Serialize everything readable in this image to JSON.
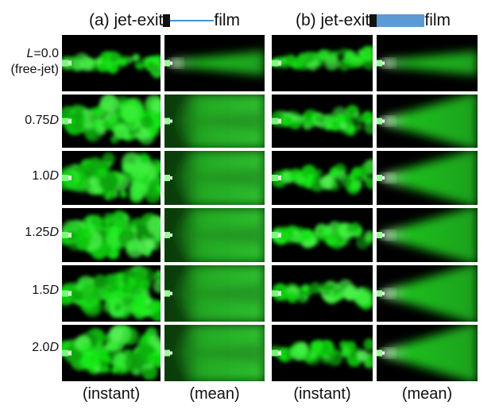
{
  "headers": {
    "a": {
      "prefix": "(a) jet-exit",
      "suffix": "film"
    },
    "b": {
      "prefix": "(b) jet-exit",
      "suffix": "film"
    }
  },
  "rows": [
    {
      "label_html": "<i>L</i>=0.0<br>(free-jet)",
      "text": "L=0.0 (free-jet)"
    },
    {
      "label_html": "0.75<i>D</i>",
      "text": "0.75D"
    },
    {
      "label_html": "1.0<i>D</i>",
      "text": "1.0D"
    },
    {
      "label_html": "1.25<i>D</i>",
      "text": "1.25D"
    },
    {
      "label_html": "1.5<i>D</i>",
      "text": "1.5D"
    },
    {
      "label_html": "2.0<i>D</i>",
      "text": "2.0D"
    }
  ],
  "footers": [
    "(instant)",
    "(mean)",
    "(instant)",
    "(mean)"
  ],
  "colors": {
    "film_a": "#4a90d9",
    "film_b": "#5b9bd5",
    "green": "#1fbf1f",
    "bg": "#000000"
  }
}
